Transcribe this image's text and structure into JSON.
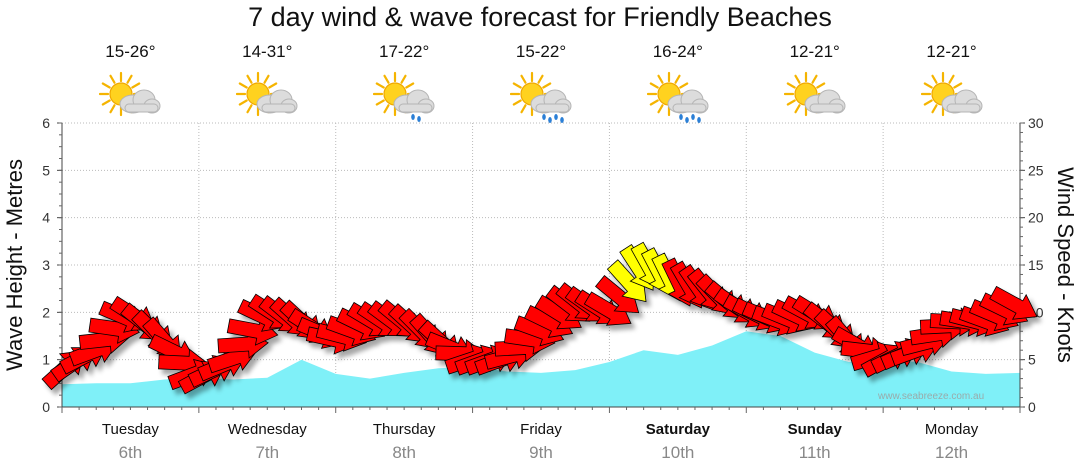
{
  "title": "7 day wind & wave forecast for Friendly Beaches",
  "days": [
    {
      "name": "Tuesday",
      "date": "6th",
      "temp": "15-26°",
      "weather": "partly-cloudy-icon",
      "weekend": false
    },
    {
      "name": "Wednesday",
      "date": "7th",
      "temp": "14-31°",
      "weather": "partly-cloudy-icon",
      "weekend": false
    },
    {
      "name": "Thursday",
      "date": "8th",
      "temp": "17-22°",
      "weather": "light-showers-icon",
      "weekend": false
    },
    {
      "name": "Friday",
      "date": "9th",
      "temp": "15-22°",
      "weather": "showers-icon",
      "weekend": false
    },
    {
      "name": "Saturday",
      "date": "10th",
      "temp": "16-24°",
      "weather": "showers-icon",
      "weekend": true
    },
    {
      "name": "Sunday",
      "date": "11th",
      "temp": "12-21°",
      "weather": "partly-cloudy-icon",
      "weekend": true
    },
    {
      "name": "Monday",
      "date": "12th",
      "temp": "12-21°",
      "weather": "partly-cloudy-icon",
      "weekend": false
    }
  ],
  "watermark": "www.seabreeze.com.au",
  "colors": {
    "wave_fill": "#7ff0f8",
    "wind_arrow": "#ff0000",
    "wind_arrow_strong": "#ffff00",
    "grid": "#bbbbbb"
  },
  "chart_data": {
    "type": "area",
    "ylabel_left": "Wave Height - Metres",
    "ylabel_right": "Wind Speed - Knots",
    "ylim_left": [
      0,
      6
    ],
    "yticks_left": [
      0,
      1,
      2,
      3,
      4,
      5,
      6
    ],
    "ylim_right": [
      0,
      30
    ],
    "yticks_right": [
      0,
      5,
      10,
      15,
      20,
      25,
      30
    ],
    "x_unit": "day index (0 = Tuesday 6th)",
    "xlim": [
      0,
      7
    ],
    "grid": true,
    "series": [
      {
        "name": "Wave Height",
        "axis": "left",
        "x": [
          0.0,
          0.25,
          0.5,
          0.75,
          1.0,
          1.25,
          1.5,
          1.75,
          2.0,
          2.25,
          2.5,
          2.75,
          3.0,
          3.25,
          3.5,
          3.75,
          4.0,
          4.25,
          4.5,
          4.75,
          5.0,
          5.25,
          5.5,
          5.75,
          6.0,
          6.25,
          6.5,
          6.75,
          7.0
        ],
        "values": [
          0.48,
          0.5,
          0.5,
          0.58,
          0.62,
          0.58,
          0.62,
          1.0,
          0.7,
          0.6,
          0.72,
          0.82,
          0.85,
          0.75,
          0.72,
          0.78,
          0.95,
          1.2,
          1.1,
          1.3,
          1.6,
          1.5,
          1.15,
          0.95,
          1.0,
          0.95,
          0.75,
          0.7,
          0.72
        ]
      },
      {
        "name": "Wind Speed",
        "axis": "right",
        "x": [
          0.0,
          0.25,
          0.5,
          0.75,
          1.0,
          1.25,
          1.5,
          1.75,
          2.0,
          2.25,
          2.5,
          2.75,
          3.0,
          3.25,
          3.5,
          3.75,
          4.0,
          4.25,
          4.5,
          4.75,
          5.0,
          5.25,
          5.5,
          5.75,
          6.0,
          6.25,
          6.5,
          6.75,
          7.0
        ],
        "values": [
          4,
          6,
          10,
          7,
          3,
          5,
          10,
          9,
          7,
          9,
          9,
          7,
          5,
          5,
          8,
          11,
          10,
          15,
          13,
          12,
          10,
          9,
          10,
          7,
          5,
          6,
          9,
          9,
          11
        ],
        "direction_deg": [
          225,
          250,
          300,
          320,
          240,
          250,
          300,
          315,
          280,
          300,
          310,
          320,
          250,
          250,
          290,
          310,
          300,
          330,
          335,
          320,
          300,
          290,
          300,
          320,
          240,
          250,
          270,
          290,
          300
        ]
      }
    ]
  }
}
